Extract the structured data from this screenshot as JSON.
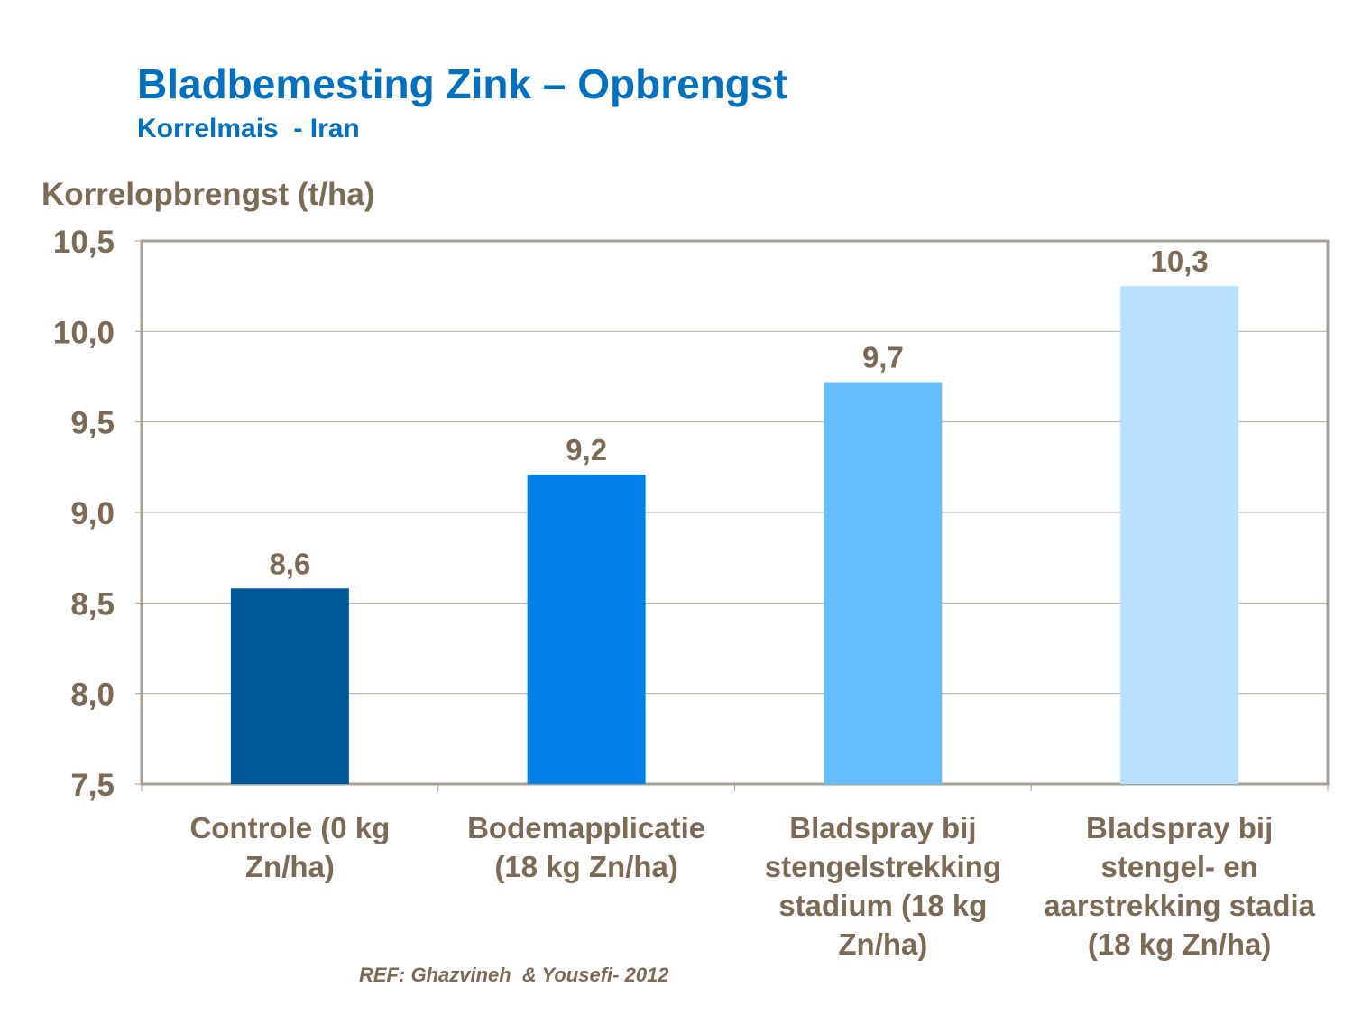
{
  "title": "Bladbemesting Zink – Opbrengst",
  "subtitle": "Korrelmais  - Iran",
  "reference": "REF: Ghazvineh  & Yousefi- 2012",
  "chart_data": {
    "type": "bar",
    "ylabel": "Korrelopbrengst (t/ha)",
    "xlabel": "",
    "ylim": [
      7.5,
      10.5
    ],
    "yticks": [
      7.5,
      8.0,
      8.5,
      9.0,
      9.5,
      10.0,
      10.5
    ],
    "ytick_labels": [
      "7,5",
      "8,0",
      "8,5",
      "9,0",
      "9,5",
      "10,0",
      "10,5"
    ],
    "grid": "horizontal",
    "categories": [
      "Controle (0 kg Zn/ha)",
      "Bodemapplicatie (18 kg Zn/ha)",
      "Bladspray bij stengelstrekking stadium (18 kg Zn/ha)",
      "Bladspray bij stengel- en aarstrekking stadia (18 kg Zn/ha)"
    ],
    "values": [
      8.58,
      9.21,
      9.72,
      10.25
    ],
    "data_labels": [
      "8,6",
      "9,2",
      "9,7",
      "10,3"
    ],
    "colors": [
      "#00589A",
      "#0082E6",
      "#66BDFF",
      "#B8E0FF"
    ],
    "axis_color": "#A89F94",
    "text_color": "#7B6A55"
  }
}
